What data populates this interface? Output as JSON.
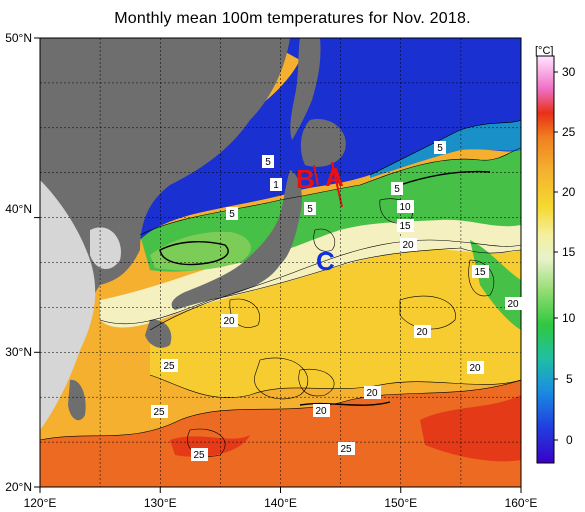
{
  "title": "Monthly mean 100m temperatures for Nov. 2018.",
  "map": {
    "lon_range": [
      120,
      160
    ],
    "lat_range": [
      20,
      50
    ],
    "x_ticks": [
      "120°E",
      "130°E",
      "140°E",
      "150°E",
      "160°E"
    ],
    "y_ticks": [
      "50°N",
      "40°N",
      "30°N",
      "20°N"
    ],
    "grid": true
  },
  "colorbar": {
    "unit": "[°C]",
    "ticks": [
      "30",
      "25",
      "20",
      "15",
      "10",
      "5",
      "0"
    ],
    "range": [
      -2,
      32
    ],
    "colors": [
      "#3a00c8",
      "#2040e0",
      "#1aa0e0",
      "#20c890",
      "#30c830",
      "#c8e8a0",
      "#f0f0d0",
      "#f5e040",
      "#f5b030",
      "#f08020",
      "#e83018",
      "#f070c8",
      "#ffe6ff"
    ]
  },
  "section_labels": [
    {
      "text": "A",
      "color": "#e81010"
    },
    {
      "text": "B",
      "color": "#e81010"
    },
    {
      "text": "C",
      "color": "#1030e0"
    }
  ],
  "contour_labels": [
    "5",
    "5",
    "5",
    "5",
    "1",
    "5",
    "10",
    "15",
    "20",
    "15",
    "20",
    "20",
    "20",
    "20",
    "20",
    "20",
    "25",
    "25",
    "25",
    "25"
  ]
}
